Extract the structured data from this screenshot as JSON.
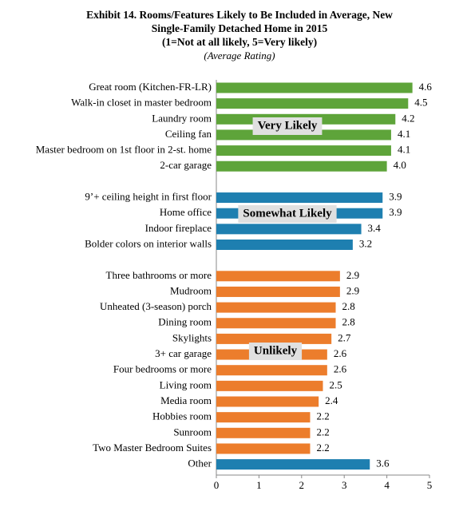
{
  "chart_data": {
    "type": "hbar",
    "title": [
      "Exhibit 14. Rooms/Features Likely to Be Included in Average, New",
      "Single-Family Detached Home in 2015",
      "(1=Not at all likely, 5=Very likely)"
    ],
    "subtitle": "(Average Rating)",
    "categories": [
      "Great room (Kitchen-FR-LR)",
      "Walk-in closet in master bedroom",
      "Laundry room",
      "Ceiling fan",
      "Master bedroom on 1st floor in 2-st. home",
      "2-car garage",
      null,
      "9’+ ceiling height in first floor",
      "Home office",
      "Indoor fireplace",
      "Bolder colors on interior walls",
      null,
      "Three bathrooms or more",
      "Mudroom",
      "Unheated (3-season) porch",
      "Dining room",
      "Skylights",
      "3+ car garage",
      "Four bedrooms or more",
      "Living room",
      "Media room",
      "Hobbies room",
      "Sunroom",
      "Two Master Bedroom Suites",
      "Other"
    ],
    "values": [
      4.6,
      4.5,
      4.2,
      4.1,
      4.1,
      4.0,
      null,
      3.9,
      3.9,
      3.4,
      3.2,
      null,
      2.9,
      2.9,
      2.8,
      2.8,
      2.7,
      2.6,
      2.6,
      2.5,
      2.4,
      2.2,
      2.2,
      2.2,
      3.6
    ],
    "value_labels": [
      "4.6",
      "4.5",
      "4.2",
      "4.1",
      "4.1",
      "4.0",
      null,
      "3.9",
      "3.9",
      "3.4",
      "3.2",
      null,
      "2.9",
      "2.9",
      "2.8",
      "2.8",
      "2.7",
      "2.6",
      "2.6",
      "2.5",
      "2.4",
      "2.2",
      "2.2",
      "2.2",
      "3.6"
    ],
    "colors": [
      "#5ea43a",
      "#5ea43a",
      "#5ea43a",
      "#5ea43a",
      "#5ea43a",
      "#5ea43a",
      null,
      "#1e7fb0",
      "#1e7fb0",
      "#1e7fb0",
      "#1e7fb0",
      null,
      "#ec7d2c",
      "#ec7d2c",
      "#ec7d2c",
      "#ec7d2c",
      "#ec7d2c",
      "#ec7d2c",
      "#ec7d2c",
      "#ec7d2c",
      "#ec7d2c",
      "#ec7d2c",
      "#ec7d2c",
      "#ec7d2c",
      "#1e7fb0"
    ],
    "annotations": [
      "Very Likely",
      "Somewhat Likely",
      "Unlikely"
    ],
    "xlim": [
      0,
      5
    ],
    "xticks": [
      0,
      1,
      2,
      3,
      4,
      5
    ]
  }
}
